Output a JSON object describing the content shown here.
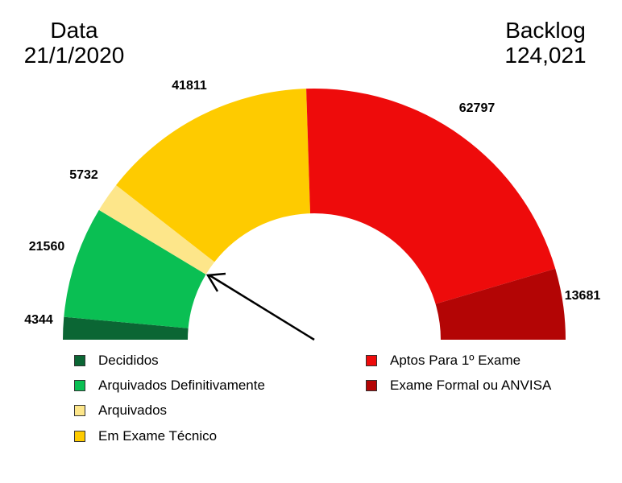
{
  "header": {
    "date_label": "Data",
    "date_value": "21/1/2020",
    "backlog_label": "Backlog",
    "backlog_value": "124,021"
  },
  "chart_data": {
    "type": "pie",
    "subtype": "half-donut",
    "slices": [
      {
        "name": "Decididos",
        "value": 4344,
        "label": "4344",
        "color": "#0b6634"
      },
      {
        "name": "Arquivados Definitivamente",
        "value": 21560,
        "label": "21560",
        "color": "#0abf53"
      },
      {
        "name": "Arquivados",
        "value": 5732,
        "label": "5732",
        "color": "#fde68a"
      },
      {
        "name": "Em Exame Técnico",
        "value": 41811,
        "label": "41811",
        "color": "#fecb00"
      },
      {
        "name": "Aptos Para 1º Exame",
        "value": 62797,
        "label": "62797",
        "color": "#ee0b0b"
      },
      {
        "name": "Exame Formal ou ANVISA",
        "value": 13681,
        "label": "13681",
        "color": "#b30505"
      }
    ],
    "legend": {
      "left": [
        "Decididos",
        "Arquivados Definitivamente",
        "Arquivados",
        "Em Exame Técnico"
      ],
      "right": [
        "Aptos Para 1º Exame",
        "Exame Formal ou ANVISA"
      ]
    },
    "annotation": "arrow pointing to the Arquivados Definitivamente / Arquivados boundary"
  }
}
